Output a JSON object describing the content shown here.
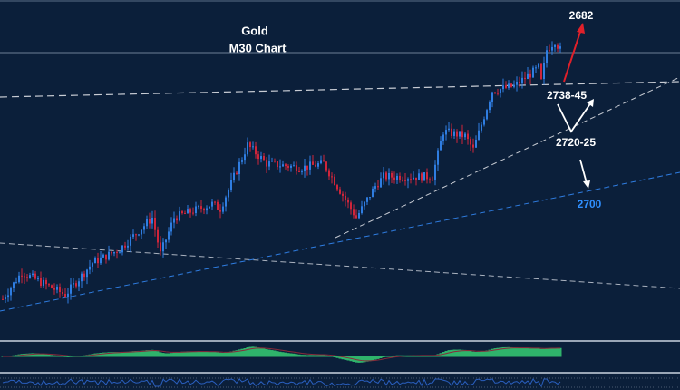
{
  "chart_data": {
    "type": "candlestick",
    "title": "Gold",
    "subtitle": "M30  Chart",
    "colors": {
      "background": "#0b1f3a",
      "up": "#2f7de1",
      "down": "#d0253a",
      "histogram": "#2fb36b",
      "signal": "#8a2a3a",
      "rsi": "#2a5fbf",
      "target_up": "#e0202a",
      "support_label": "#2f8fff"
    },
    "price_path": [
      [
        0,
        2668.6
      ],
      [
        7,
        2677.9
      ],
      [
        23,
        2670.1
      ],
      [
        33,
        2681.1
      ],
      [
        43,
        2685.8
      ],
      [
        55,
        2696.7
      ],
      [
        58,
        2684.2
      ],
      [
        63,
        2696.7
      ],
      [
        77,
        2701.4
      ],
      [
        80,
        2699.8
      ],
      [
        90,
        2721.7
      ],
      [
        97,
        2715.4
      ],
      [
        110,
        2713.9
      ],
      [
        118,
        2715.4
      ],
      [
        123,
        2707.6
      ],
      [
        130,
        2696.7
      ],
      [
        137,
        2707.6
      ],
      [
        140,
        2710.8
      ],
      [
        158,
        2710.8
      ],
      [
        162,
        2726.4
      ],
      [
        170,
        2724.8
      ],
      [
        173,
        2720.1
      ],
      [
        180,
        2740.4
      ],
      [
        188,
        2742
      ],
      [
        197,
        2748.3
      ],
      [
        198,
        2743.6
      ],
      [
        200,
        2754.5
      ],
      [
        203,
        2757.6
      ],
      [
        205,
        2754.5
      ]
    ],
    "annotations": [
      {
        "text": "2682",
        "color": "#ffffff",
        "arrow": "up",
        "arrow_color": "#e0202a"
      },
      {
        "text": "2738-45",
        "color": "#ffffff"
      },
      {
        "text": "2720-25",
        "color": "#ffffff",
        "arrow": "v-bounce"
      },
      {
        "text": "2700",
        "color": "#2f8fff",
        "arrow": "down"
      }
    ],
    "grid": false
  }
}
